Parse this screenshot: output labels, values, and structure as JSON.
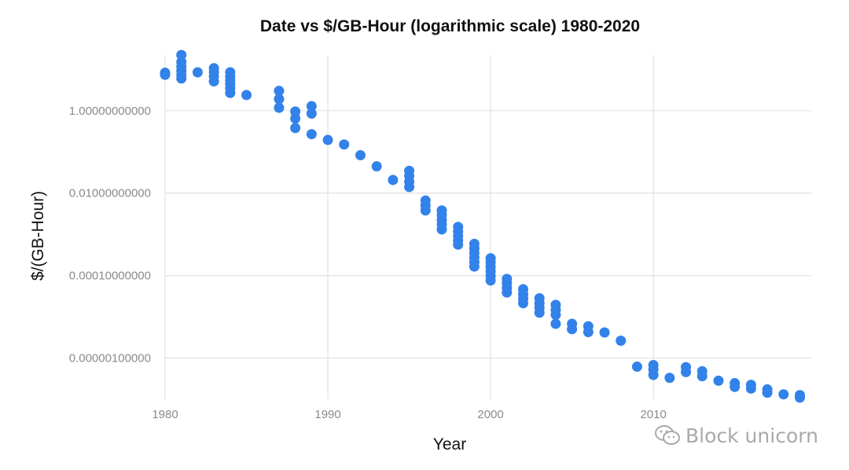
{
  "chart_data": {
    "type": "scatter",
    "title": "Date vs $/GB-Hour (logarithmic scale) 1980-2020",
    "xlabel": "Year",
    "ylabel": "$/(GB-Hour)",
    "yscale": "log10",
    "xlim": [
      1980,
      2019.7
    ],
    "ylim_log10": [
      -7.0,
      1.35
    ],
    "grid": true,
    "color": "#3282ea",
    "x_ticks": [
      {
        "value": 1980,
        "label": "1980"
      },
      {
        "value": 1990,
        "label": "1990"
      },
      {
        "value": 2000,
        "label": "2000"
      },
      {
        "value": 2010,
        "label": "2010"
      }
    ],
    "y_ticks": [
      {
        "log10": 0,
        "label": "1.00000000000"
      },
      {
        "log10": -2,
        "label": "0.01000000000"
      },
      {
        "log10": -4,
        "label": "0.00010000000"
      },
      {
        "log10": -6,
        "label": "0.00000100000"
      }
    ],
    "points_log10": [
      [
        1980,
        0.92
      ],
      [
        1980,
        0.87
      ],
      [
        1981,
        1.35
      ],
      [
        1981,
        1.18
      ],
      [
        1981,
        1.07
      ],
      [
        1981,
        0.97
      ],
      [
        1981,
        0.87
      ],
      [
        1981,
        0.78
      ],
      [
        1982,
        0.93
      ],
      [
        1983,
        1.03
      ],
      [
        1983,
        0.93
      ],
      [
        1983,
        0.83
      ],
      [
        1983,
        0.71
      ],
      [
        1984,
        0.93
      ],
      [
        1984,
        0.83
      ],
      [
        1984,
        0.73
      ],
      [
        1984,
        0.64
      ],
      [
        1984,
        0.54
      ],
      [
        1984,
        0.43
      ],
      [
        1985,
        0.38
      ],
      [
        1987,
        0.48
      ],
      [
        1987,
        0.28
      ],
      [
        1987,
        0.07
      ],
      [
        1988,
        -0.02
      ],
      [
        1988,
        -0.19
      ],
      [
        1988,
        -0.42
      ],
      [
        1989,
        0.11
      ],
      [
        1989,
        -0.07
      ],
      [
        1989,
        -0.57
      ],
      [
        1990,
        -0.71
      ],
      [
        1991,
        -0.82
      ],
      [
        1992,
        -1.08
      ],
      [
        1993,
        -1.35
      ],
      [
        1994,
        -1.68
      ],
      [
        1995,
        -1.46
      ],
      [
        1995,
        -1.58
      ],
      [
        1995,
        -1.72
      ],
      [
        1995,
        -1.85
      ],
      [
        1996,
        -2.18
      ],
      [
        1996,
        -2.3
      ],
      [
        1996,
        -2.42
      ],
      [
        1997,
        -2.42
      ],
      [
        1997,
        -2.53
      ],
      [
        1997,
        -2.65
      ],
      [
        1997,
        -2.76
      ],
      [
        1997,
        -2.88
      ],
      [
        1998,
        -2.82
      ],
      [
        1998,
        -2.93
      ],
      [
        1998,
        -3.04
      ],
      [
        1998,
        -3.15
      ],
      [
        1998,
        -3.25
      ],
      [
        1999,
        -3.23
      ],
      [
        1999,
        -3.34
      ],
      [
        1999,
        -3.45
      ],
      [
        1999,
        -3.56
      ],
      [
        1999,
        -3.67
      ],
      [
        1999,
        -3.78
      ],
      [
        2000,
        -3.58
      ],
      [
        2000,
        -3.68
      ],
      [
        2000,
        -3.79
      ],
      [
        2000,
        -3.9
      ],
      [
        2000,
        -4.01
      ],
      [
        2000,
        -4.12
      ],
      [
        2001,
        -4.08
      ],
      [
        2001,
        -4.19
      ],
      [
        2001,
        -4.3
      ],
      [
        2001,
        -4.41
      ],
      [
        2002,
        -4.33
      ],
      [
        2002,
        -4.45
      ],
      [
        2002,
        -4.56
      ],
      [
        2002,
        -4.67
      ],
      [
        2003,
        -4.55
      ],
      [
        2003,
        -4.67
      ],
      [
        2003,
        -4.78
      ],
      [
        2003,
        -4.9
      ],
      [
        2004,
        -4.71
      ],
      [
        2004,
        -4.83
      ],
      [
        2004,
        -4.95
      ],
      [
        2004,
        -5.17
      ],
      [
        2005,
        -5.17
      ],
      [
        2005,
        -5.3
      ],
      [
        2006,
        -5.23
      ],
      [
        2006,
        -5.37
      ],
      [
        2007,
        -5.38
      ],
      [
        2008,
        -5.58
      ],
      [
        2009,
        -6.21
      ],
      [
        2010,
        -6.17
      ],
      [
        2010,
        -6.28
      ],
      [
        2010,
        -6.41
      ],
      [
        2011,
        -6.48
      ],
      [
        2012,
        -6.22
      ],
      [
        2012,
        -6.34
      ],
      [
        2013,
        -6.32
      ],
      [
        2013,
        -6.44
      ],
      [
        2014,
        -6.55
      ],
      [
        2015,
        -6.61
      ],
      [
        2015,
        -6.7
      ],
      [
        2016,
        -6.65
      ],
      [
        2016,
        -6.74
      ],
      [
        2017,
        -6.76
      ],
      [
        2017,
        -6.84
      ],
      [
        2018,
        -6.88
      ],
      [
        2019,
        -6.9
      ],
      [
        2019,
        -6.96
      ]
    ]
  },
  "watermark": {
    "text": "Block unicorn",
    "icon": "wechat-icon",
    "color": "#a9a9a9"
  }
}
